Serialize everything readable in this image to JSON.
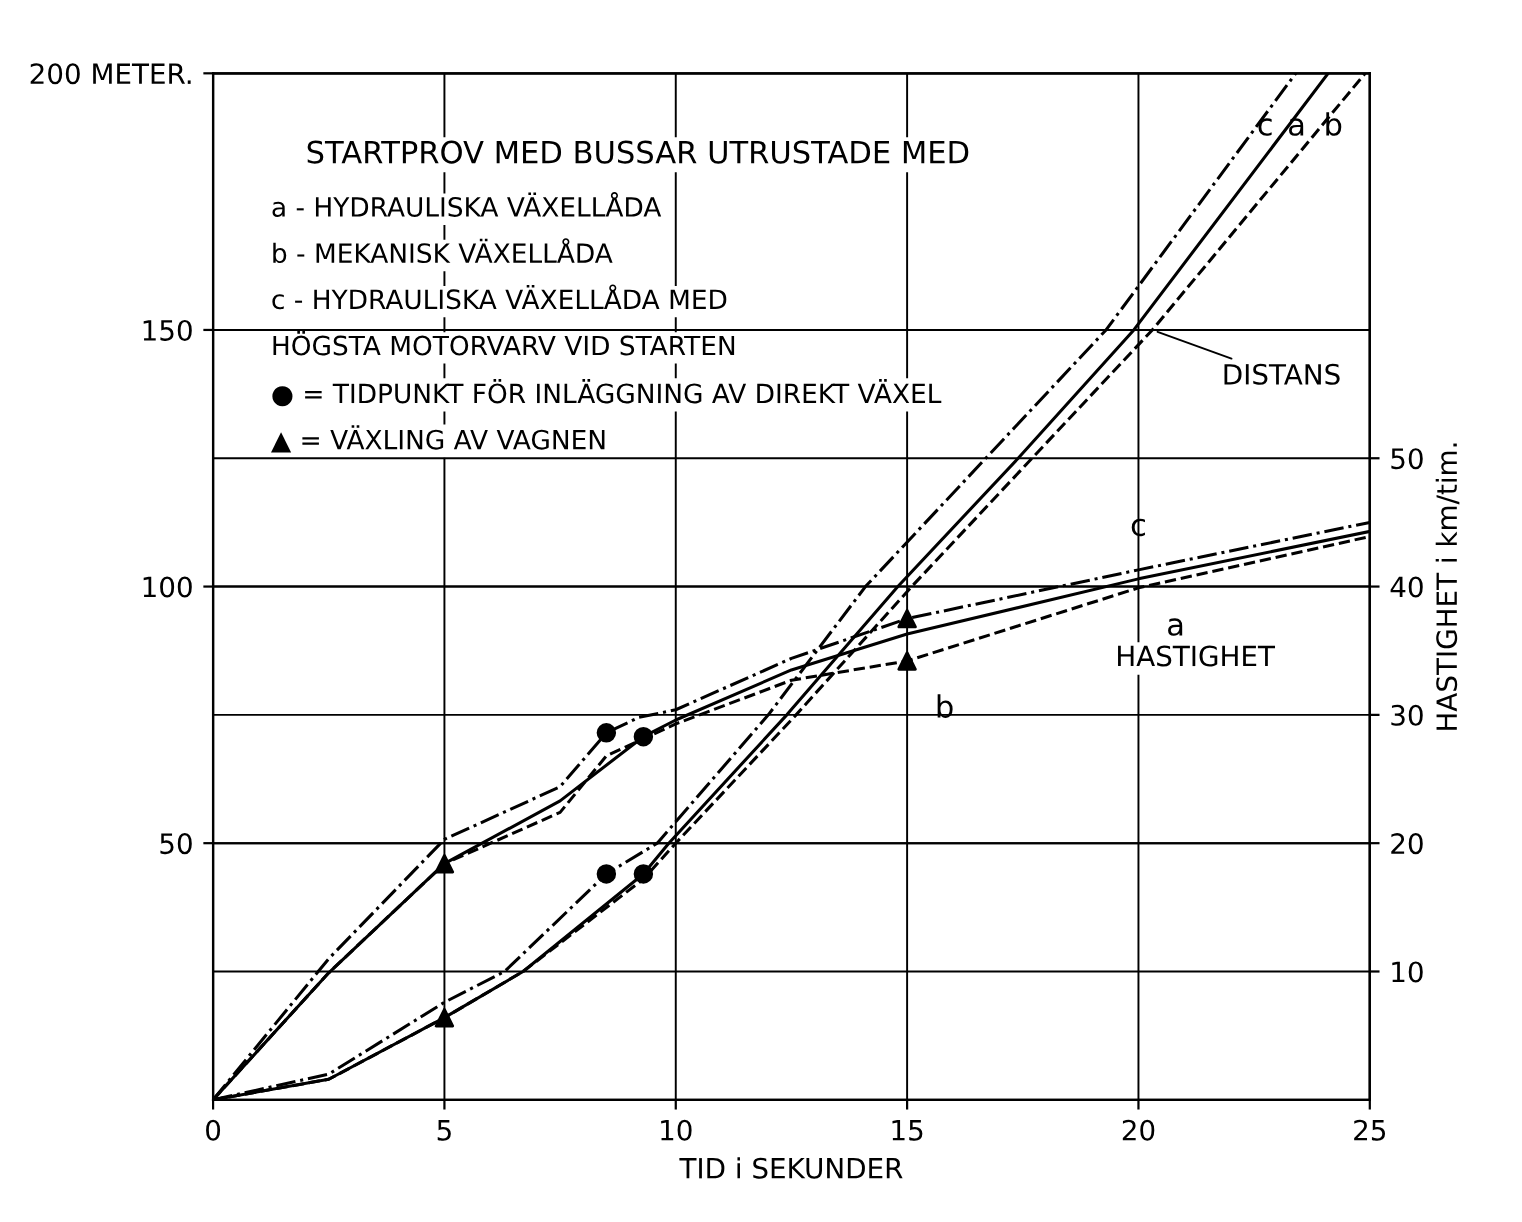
{
  "chart_data": {
    "type": "line",
    "title": "STARTPROV MED BUSSAR UTRUSTADE MED",
    "xlabel": "TID i SEKUNDER",
    "y2label": "HASTIGHET i km/tim.",
    "xlim": [
      0,
      25
    ],
    "xticks": [
      0,
      5,
      10,
      15,
      20,
      25
    ],
    "ylim": [
      0,
      200
    ],
    "yticks": [
      50,
      100,
      150,
      {
        "value": 200,
        "label": "200 METER."
      }
    ],
    "y2lim": [
      0,
      80
    ],
    "y2ticks": [
      10,
      20,
      30,
      40,
      50
    ],
    "grid": true,
    "legend": false,
    "series": [
      {
        "name": "c",
        "color": "#000000",
        "line_style": "dashdot",
        "x": [
          0,
          2.5,
          5,
          6.3,
          8.5,
          9.6,
          12,
          14.1,
          16.7,
          19.3,
          23.4
        ],
        "values": [
          0,
          5,
          19,
          25,
          44,
          50,
          75,
          100,
          125,
          150,
          200
        ]
      },
      {
        "name": "a",
        "color": "#000000",
        "line_style": "solid",
        "x": [
          0,
          2.5,
          5,
          6.7,
          9.3,
          9.85,
          12.4,
          14.8,
          17.4,
          19.9,
          24.1
        ],
        "values": [
          0,
          4,
          16,
          25,
          44,
          50,
          75,
          100,
          125,
          150,
          200
        ]
      },
      {
        "name": "b",
        "color": "#000000",
        "line_style": "dashed",
        "x": [
          0,
          2.5,
          5,
          6.7,
          9.3,
          10,
          12.6,
          15.1,
          17.7,
          20.3,
          24.9
        ],
        "values": [
          0,
          4,
          16,
          25,
          43,
          50,
          75,
          100,
          125,
          150,
          200
        ]
      },
      {
        "name": "c",
        "color": "#000000",
        "line_style": "dashdot",
        "axis": "y2",
        "x": [
          0,
          2.5,
          5,
          7.5,
          8.5,
          9.2,
          10,
          12.5,
          15,
          20,
          25
        ],
        "values": [
          0,
          11,
          20.3,
          24.4,
          28.6,
          29.8,
          30.4,
          34.4,
          37.5,
          41.3,
          45
        ]
      },
      {
        "name": "a",
        "color": "#000000",
        "line_style": "solid",
        "axis": "y2",
        "x": [
          0,
          2.5,
          5,
          7.5,
          9.3,
          10,
          12.5,
          15,
          20,
          25
        ],
        "values": [
          0,
          9.9,
          18.4,
          23.3,
          28.3,
          29.6,
          33.5,
          36.3,
          40.6,
          44.3
        ]
      },
      {
        "name": "b",
        "color": "#000000",
        "line_style": "dashed",
        "axis": "y2",
        "x": [
          0,
          2.5,
          5,
          7.5,
          8.5,
          10,
          12.5,
          15,
          20,
          25
        ],
        "values": [
          0,
          9.9,
          18.4,
          22.4,
          26.8,
          29.3,
          32.7,
          34.2,
          39.9,
          43.9
        ]
      },
      {
        "type": "scatter",
        "marker": "circle",
        "color": "#000000",
        "x": [
          8.5,
          9.3
        ],
        "values": [
          44,
          44
        ]
      },
      {
        "type": "scatter",
        "marker": "circle",
        "color": "#000000",
        "axis": "y2",
        "x": [
          8.5,
          9.3
        ],
        "values": [
          28.6,
          28.3
        ]
      },
      {
        "type": "scatter",
        "marker": "triangle",
        "color": "#000000",
        "x": [
          5
        ],
        "values": [
          16
        ]
      },
      {
        "type": "scatter",
        "marker": "triangle",
        "color": "#000000",
        "axis": "y2",
        "x": [
          5,
          15,
          15
        ],
        "values": [
          18.4,
          37.5,
          34.2
        ]
      }
    ],
    "annotations": [
      "a - HYDRAULISKA VÄXELLÅDA",
      "b - MEKANISK VÄXELLÅDA",
      "c - HYDRAULISKA VÄXELLÅDA MED",
      "HÖGSTA MOTORVARV VID STARTEN",
      "● = TIDPUNKT FÖR INLÄGGNING AV DIREKT VÄXEL",
      "▲ = VÄXLING AV VAGNEN",
      {
        "text": "DISTANS",
        "x": 20.3,
        "y": 150
      },
      "HASTIGHET"
    ]
  }
}
